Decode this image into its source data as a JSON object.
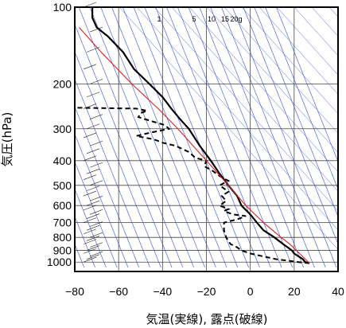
{
  "chart_data": {
    "type": "line",
    "title": "",
    "xlabel": "気温(実線), 露点(破線)",
    "ylabel": "気圧(hPa)",
    "x_range": [
      -80,
      40
    ],
    "y_range_hpa": [
      1050,
      100
    ],
    "y_scale": "log",
    "x_ticks": [
      -80,
      -60,
      -40,
      -20,
      0,
      20,
      40
    ],
    "x_tick_labels": [
      "−80",
      "−60",
      "−40",
      "−20",
      "0",
      "20",
      "40"
    ],
    "y_ticks": [
      100,
      200,
      300,
      400,
      500,
      600,
      700,
      800,
      900,
      1000
    ],
    "y_tick_labels": [
      "100",
      "200",
      "300",
      "400",
      "500",
      "600",
      "700",
      "800",
      "900",
      "1000"
    ],
    "mixing_ratio_labels": [
      "1",
      "5",
      "10",
      "15",
      "20g"
    ],
    "grid": true,
    "series": [
      {
        "style": "solid",
        "color": "#000000",
        "points": [
          [
            1010,
            27
          ],
          [
            1000,
            25
          ],
          [
            975,
            24
          ],
          [
            950,
            22
          ],
          [
            925,
            20
          ],
          [
            900,
            19
          ],
          [
            875,
            17
          ],
          [
            850,
            15
          ],
          [
            800,
            11
          ],
          [
            750,
            6
          ],
          [
            700,
            3
          ],
          [
            650,
            0
          ],
          [
            600,
            -4
          ],
          [
            550,
            -6
          ],
          [
            500,
            -10
          ],
          [
            450,
            -14
          ],
          [
            400,
            -18
          ],
          [
            350,
            -23
          ],
          [
            300,
            -28
          ],
          [
            275,
            -32
          ],
          [
            250,
            -36
          ],
          [
            225,
            -40
          ],
          [
            200,
            -46
          ],
          [
            175,
            -53
          ],
          [
            150,
            -58
          ],
          [
            130,
            -65
          ],
          [
            120,
            -70
          ],
          [
            110,
            -72
          ],
          [
            100,
            -72
          ]
        ]
      },
      {
        "style": "dashed",
        "color": "#000000",
        "points": [
          [
            1010,
            27
          ],
          [
            1000,
            22
          ],
          [
            975,
            12
          ],
          [
            950,
            6
          ],
          [
            925,
            0
          ],
          [
            900,
            -4
          ],
          [
            875,
            -6
          ],
          [
            850,
            -9
          ],
          [
            800,
            -11
          ],
          [
            750,
            -12
          ],
          [
            700,
            -12
          ],
          [
            680,
            -6
          ],
          [
            660,
            -2
          ],
          [
            650,
            -8
          ],
          [
            630,
            -12
          ],
          [
            620,
            -10
          ],
          [
            600,
            -14
          ],
          [
            575,
            -11
          ],
          [
            550,
            -13
          ],
          [
            530,
            -10
          ],
          [
            500,
            -14
          ],
          [
            480,
            -10
          ],
          [
            460,
            -14
          ],
          [
            440,
            -17
          ],
          [
            420,
            -21
          ],
          [
            400,
            -20
          ],
          [
            390,
            -25
          ],
          [
            370,
            -28
          ],
          [
            350,
            -34
          ],
          [
            340,
            -40
          ],
          [
            330,
            -44
          ],
          [
            320,
            -52
          ],
          [
            310,
            -45
          ],
          [
            300,
            -37
          ],
          [
            290,
            -39
          ],
          [
            280,
            -45
          ],
          [
            270,
            -51
          ],
          [
            260,
            -50
          ],
          [
            255,
            -47
          ],
          [
            250,
            -52
          ],
          [
            248,
            -80
          ]
        ]
      },
      {
        "style": "solid",
        "color": "#e02020",
        "points": [
          [
            1010,
            27
          ],
          [
            900,
            21
          ],
          [
            850,
            18
          ],
          [
            800,
            14
          ],
          [
            700,
            6
          ],
          [
            600,
            -2
          ],
          [
            500,
            -10
          ],
          [
            400,
            -20
          ],
          [
            300,
            -33
          ],
          [
            250,
            -42
          ],
          [
            200,
            -54
          ],
          [
            150,
            -68
          ],
          [
            120,
            -78
          ]
        ]
      }
    ]
  }
}
